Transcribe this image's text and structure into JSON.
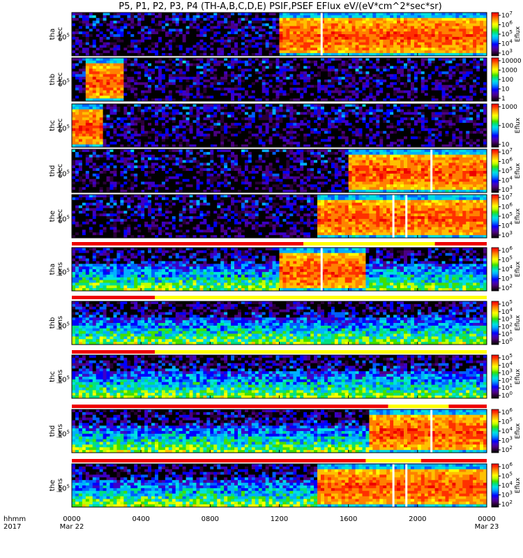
{
  "chart_data": {
    "type": "heatmap",
    "title": "P5, P1, P2, P3, P4 (TH-A,B,C,D,E) PSIF,PSEF EFlux eV/(eV*cm^2*sec*sr)",
    "x_axis": {
      "row_label_1": "hhmm",
      "row_label_2": "2017",
      "ticks": [
        "0000",
        "0400",
        "0800",
        "1200",
        "1600",
        "2000",
        "0000"
      ],
      "date_labels": [
        "Mar 22",
        "Mar 23"
      ],
      "range_hours": [
        0,
        24
      ]
    },
    "colormap": "rainbow (black/purple low → blue → green → yellow → red high)",
    "panels": [
      {
        "probe": "tha",
        "species": "elec",
        "colorbar_label": "Eflux",
        "y_tick": "10^5",
        "colorbar_ticks": [
          "10^3",
          "10^4",
          "10^5",
          "10^6",
          "10^7"
        ],
        "hot_region_hours": [
          12.0,
          24.0
        ],
        "gap_hours": [
          14.45
        ]
      },
      {
        "probe": "thb",
        "species": "elec",
        "colorbar_label": "",
        "y_tick": "10^5",
        "colorbar_ticks": [
          "1",
          "10",
          "100",
          "1000",
          "10000"
        ],
        "hot_region_hours": [
          0.8,
          2.9
        ],
        "gap_hours": []
      },
      {
        "probe": "thc",
        "species": "elec",
        "colorbar_label": "Eflux",
        "y_tick": "10^5",
        "colorbar_ticks": [
          "10",
          "100",
          "1000"
        ],
        "hot_region_hours": [
          0.0,
          1.7
        ],
        "gap_hours": []
      },
      {
        "probe": "thd",
        "species": "elec",
        "colorbar_label": "Eflux",
        "y_tick": "10^5",
        "colorbar_ticks": [
          "10^3",
          "10^4",
          "10^5",
          "10^6",
          "10^7"
        ],
        "hot_region_hours": [
          16.0,
          24.0
        ],
        "gap_hours": [
          20.8
        ]
      },
      {
        "probe": "the",
        "species": "elec",
        "colorbar_label": "Eflux",
        "y_tick": "10^5",
        "colorbar_ticks": [
          "10^3",
          "10^4",
          "10^5",
          "10^6",
          "10^7"
        ],
        "hot_region_hours": [
          14.2,
          24.0
        ],
        "gap_hours": [
          18.6,
          19.35
        ]
      },
      {
        "probe": "tha",
        "species": "ions",
        "colorbar_label": "Eflux",
        "y_tick": "10^5",
        "colorbar_ticks": [
          "10^2",
          "10^3",
          "10^4",
          "10^5",
          "10^6"
        ],
        "hot_region_hours": [
          12.0,
          17.0
        ],
        "gap_hours": [
          14.45
        ]
      },
      {
        "probe": "thb",
        "species": "ions",
        "colorbar_label": "Eflux",
        "y_tick": "10^5",
        "colorbar_ticks": [
          "10^0",
          "10^1",
          "10^2",
          "10^3",
          "10^4",
          "10^5"
        ],
        "hot_region_hours": [],
        "gap_hours": []
      },
      {
        "probe": "thc",
        "species": "ions",
        "colorbar_label": "Eflux",
        "y_tick": "10^5",
        "colorbar_ticks": [
          "10^0",
          "10^1",
          "10^2",
          "10^3",
          "10^4",
          "10^5"
        ],
        "hot_region_hours": [],
        "gap_hours": []
      },
      {
        "probe": "thd",
        "species": "ions",
        "colorbar_label": "Eflux",
        "y_tick": "10^5",
        "colorbar_ticks": [
          "10^2",
          "10^3",
          "10^4",
          "10^5",
          "10^6"
        ],
        "hot_region_hours": [
          17.2,
          24.0
        ],
        "gap_hours": [
          20.8
        ]
      },
      {
        "probe": "the",
        "species": "ions",
        "colorbar_label": "Eflux",
        "y_tick": "10^5",
        "colorbar_ticks": [
          "10^2",
          "10^3",
          "10^4",
          "10^5",
          "10^6"
        ],
        "hot_region_hours": [
          14.2,
          24.0
        ],
        "gap_hours": [
          18.6,
          19.35
        ]
      }
    ],
    "mode_bars": [
      {
        "after_panel": 4,
        "segments": [
          {
            "from": 0,
            "to": 13.4,
            "color": "#ee0000"
          },
          {
            "from": 13.4,
            "to": 21.0,
            "color": "#ffff00"
          },
          {
            "from": 21.0,
            "to": 24,
            "color": "#ee0000"
          }
        ]
      },
      {
        "after_panel": 5,
        "segments": [
          {
            "from": 0,
            "to": 4.8,
            "color": "#ee0000"
          },
          {
            "from": 4.8,
            "to": 24,
            "color": "#ffff00"
          }
        ]
      },
      {
        "after_panel": 6,
        "segments": [
          {
            "from": 0,
            "to": 4.8,
            "color": "#ee0000"
          },
          {
            "from": 4.8,
            "to": 24,
            "color": "#ffff00"
          }
        ]
      },
      {
        "after_panel": 7,
        "segments": [
          {
            "from": 0,
            "to": 18.3,
            "color": "#ee0000"
          },
          {
            "from": 18.3,
            "to": 21.8,
            "color": "#ffff00"
          },
          {
            "from": 21.8,
            "to": 24,
            "color": "#ee0000"
          }
        ]
      },
      {
        "after_panel": 8,
        "segments": [
          {
            "from": 0,
            "to": 17.0,
            "color": "#ee0000"
          },
          {
            "from": 17.0,
            "to": 20.2,
            "color": "#ffff00"
          },
          {
            "from": 20.2,
            "to": 24,
            "color": "#ee0000"
          }
        ]
      }
    ]
  }
}
